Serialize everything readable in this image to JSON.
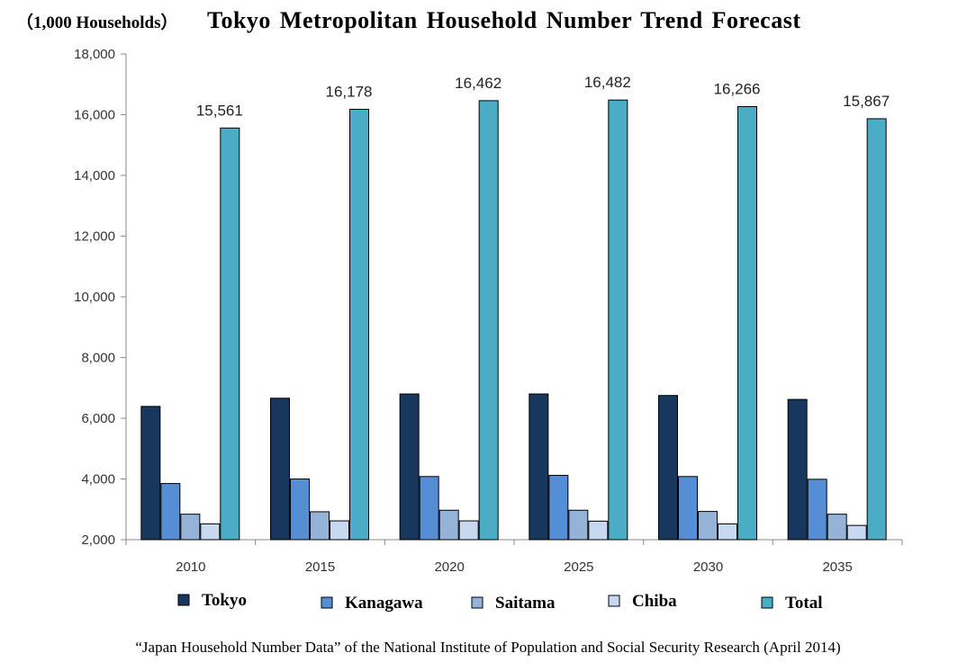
{
  "unit_label": "（1,000 Households）",
  "title": "Tokyo  Metropolitan  Household  Number  Trend  Forecast",
  "source": "“Japan Household Number Data” of the National  Institute  of Population and Social Security Research (April 2014)",
  "colors": {
    "Tokyo": "#17375e",
    "Kanagawa": "#558ed5",
    "Saitama": "#95b3d7",
    "Chiba": "#c6d9f1",
    "Total": "#4bacc6"
  },
  "chart_data": {
    "type": "bar",
    "categories": [
      "2010",
      "2015",
      "2020",
      "2025",
      "2030",
      "2035"
    ],
    "ylim": [
      2000,
      18000
    ],
    "yticks": [
      "2,000",
      "4,000",
      "6,000",
      "8,000",
      "10,000",
      "12,000",
      "14,000",
      "16,000",
      "18,000"
    ],
    "grid": false,
    "legend_position": "bottom",
    "series": [
      {
        "name": "Tokyo",
        "values": [
          6390,
          6660,
          6800,
          6800,
          6750,
          6620
        ]
      },
      {
        "name": "Kanagawa",
        "values": [
          3850,
          4000,
          4080,
          4120,
          4080,
          3990
        ]
      },
      {
        "name": "Saitama",
        "values": [
          2840,
          2920,
          2970,
          2970,
          2930,
          2840
        ]
      },
      {
        "name": "Chiba",
        "values": [
          2520,
          2620,
          2620,
          2610,
          2520,
          2470
        ]
      },
      {
        "name": "Total",
        "values": [
          15561,
          16178,
          16462,
          16482,
          16266,
          15867
        ]
      }
    ],
    "total_labels": [
      "15,561",
      "16,178",
      "16,462",
      "16,482",
      "16,266",
      "15,867"
    ]
  }
}
